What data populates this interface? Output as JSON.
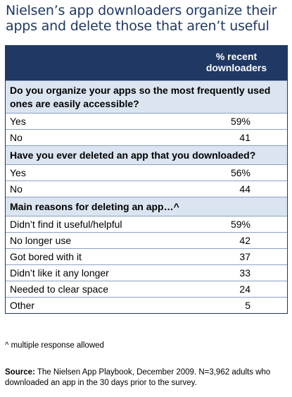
{
  "title": "Nielsen’s app downloaders organize their apps and delete those that aren’t useful",
  "column_header": "% recent downloaders",
  "sections": [
    {
      "question": "Do you organize your apps so the most frequently used ones are easily accessible?",
      "rows": [
        {
          "label": "Yes",
          "value": "59%"
        },
        {
          "label": "No",
          "value": "41"
        }
      ]
    },
    {
      "question": "Have you ever deleted an app that you downloaded?",
      "rows": [
        {
          "label": "Yes",
          "value": "56%"
        },
        {
          "label": "No",
          "value": "44"
        }
      ]
    },
    {
      "question": "Main reasons for deleting an app…^",
      "rows": [
        {
          "label": "Didn’t find it useful/helpful",
          "value": "59%"
        },
        {
          "label": "No longer use",
          "value": "42"
        },
        {
          "label": "Got bored with it",
          "value": "37"
        },
        {
          "label": "Didn’t like it any longer",
          "value": "33"
        },
        {
          "label": "Needed to clear space",
          "value": "24"
        },
        {
          "label": "Other",
          "value": "5"
        }
      ]
    }
  ],
  "footnote": "^ multiple response allowed",
  "source_label": "Source:",
  "source_text": "The Nielsen App Playbook, December 2009. N=3,962 adults who downloaded an app in the 30 days prior to the survey.",
  "chart_data": {
    "type": "table",
    "title": "Nielsen’s app downloaders organize their apps and delete those that aren’t useful",
    "columns": [
      "% recent downloaders"
    ],
    "groups": [
      {
        "name": "Do you organize your apps so the most frequently used ones are easily accessible?",
        "categories": [
          "Yes",
          "No"
        ],
        "values": [
          59,
          41
        ]
      },
      {
        "name": "Have you ever deleted an app that you downloaded?",
        "categories": [
          "Yes",
          "No"
        ],
        "values": [
          56,
          44
        ]
      },
      {
        "name": "Main reasons for deleting an app…^",
        "categories": [
          "Didn’t find it useful/helpful",
          "No longer use",
          "Got bored with it",
          "Didn’t like it any longer",
          "Needed to clear space",
          "Other"
        ],
        "values": [
          59,
          42,
          37,
          33,
          24,
          5
        ]
      }
    ],
    "colors": {
      "header": "#1f3864",
      "section": "#dbe5f1",
      "title": "#1f3864"
    }
  }
}
